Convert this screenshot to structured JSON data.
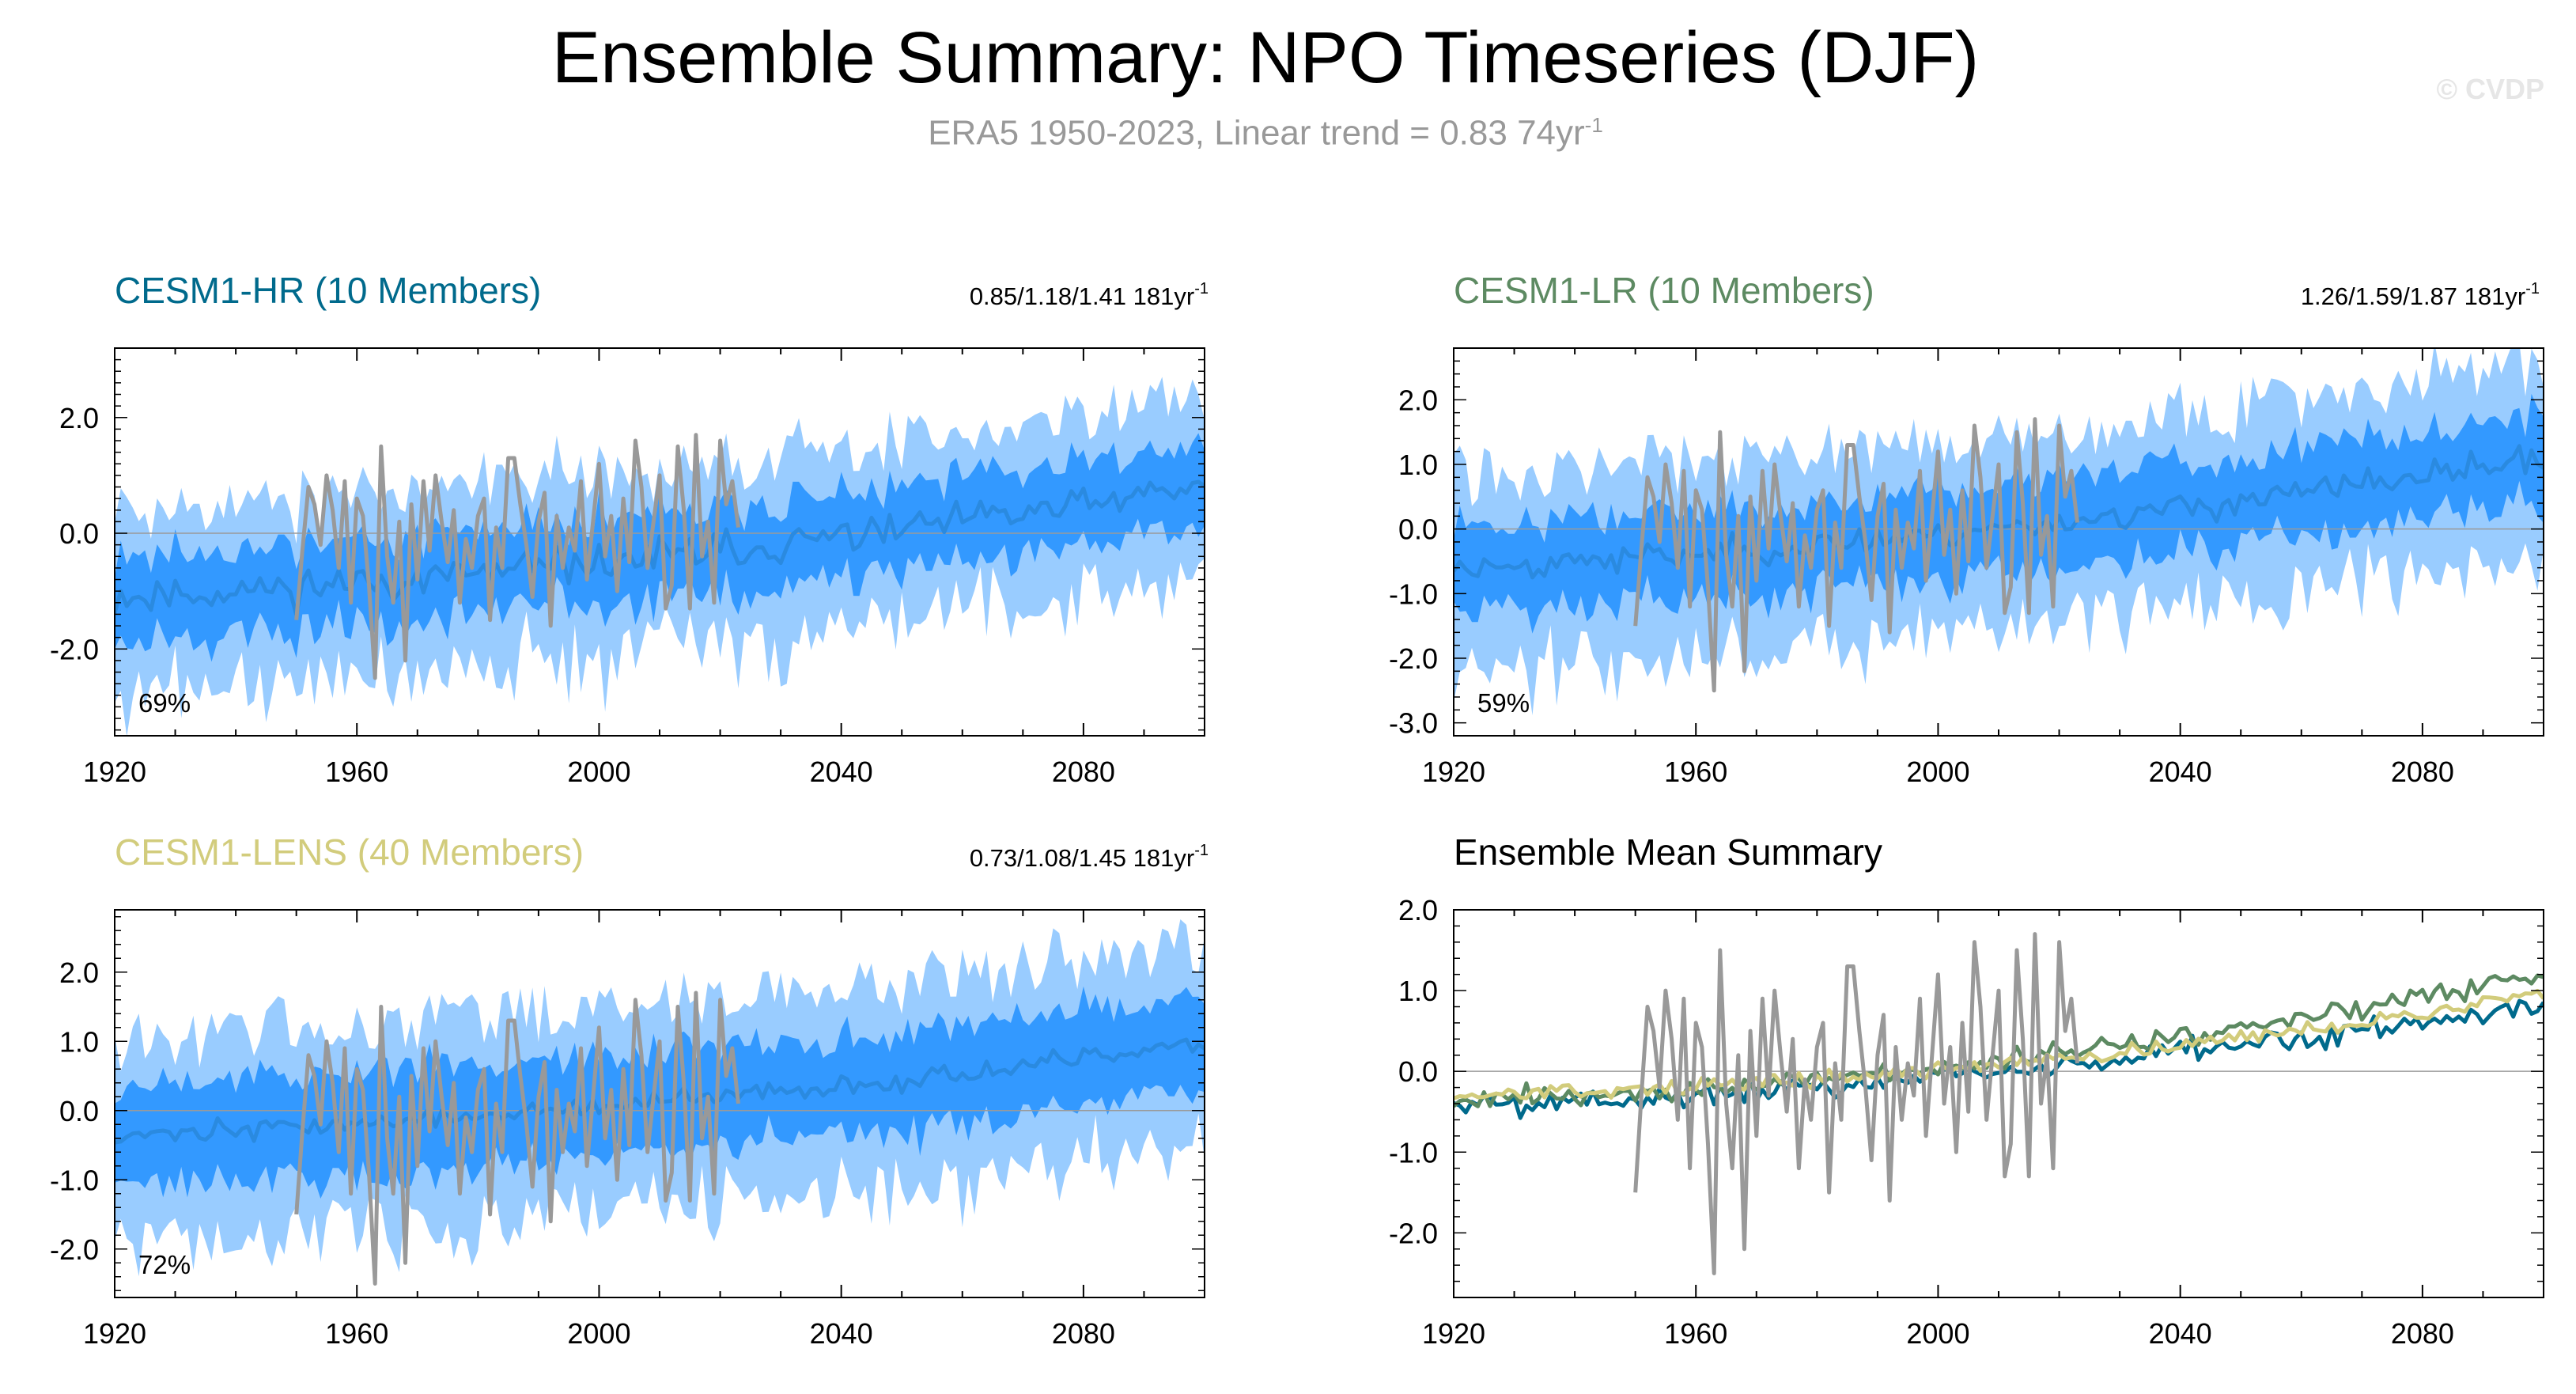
{
  "header": {
    "title": "Ensemble Summary: NPO Timeseries (DJF)",
    "subtitle_main": "ERA5 1950-2023, Linear trend = 0.83 74yr",
    "subtitle_exp": "-1",
    "watermark": "© CVDP"
  },
  "colors": {
    "obs": "#999999",
    "band_outer": "#99ccff",
    "band_inner": "#3399ff",
    "ens_mean_line": "#2a8ae0",
    "hr": "#006a8c",
    "lr": "#5d8a62",
    "lens": "#d2cc7c"
  },
  "chart_data": [
    {
      "type": "line",
      "id": "hr",
      "title": "CESM1-HR (10 Members)",
      "title_color": "#006a8c",
      "stat": "0.85/1.18/1.41 181yr",
      "stat_exp": "-1",
      "percent": "69%",
      "xlim": [
        1920,
        2100
      ],
      "ylim": [
        -3.5,
        3.2
      ],
      "xticks": [
        1920,
        1960,
        2000,
        2040,
        2080
      ],
      "xtick_labels": [
        "1920",
        "1960",
        "2000",
        "2040",
        "2080"
      ],
      "yticks": [
        2.0,
        0.0,
        -2.0
      ],
      "ytick_labels": [
        "2.0",
        "0.0",
        "-2.0"
      ],
      "ens_start": -1.1,
      "ens_end": 0.8,
      "ens_shape": 0.0019,
      "ens_noise": 0.45,
      "inner_half_width": 0.75,
      "outer_half_width": 1.45,
      "seed": 11
    },
    {
      "type": "line",
      "id": "lr",
      "title": "CESM1-LR (10 Members)",
      "title_color": "#5d8a62",
      "stat": "1.26/1.59/1.87 181yr",
      "stat_exp": "-1",
      "percent": "59%",
      "xlim": [
        1920,
        2100
      ],
      "ylim": [
        -3.2,
        2.8
      ],
      "xticks": [
        1920,
        1960,
        2000,
        2040,
        2080
      ],
      "xtick_labels": [
        "1920",
        "1960",
        "2000",
        "2040",
        "2080"
      ],
      "yticks": [
        2.0,
        1.0,
        0.0,
        -1.0,
        -2.0,
        -3.0
      ],
      "ytick_labels": [
        "2.0",
        "1.0",
        "0.0",
        "-1.0",
        "-2.0",
        "-3.0"
      ],
      "ens_start": -0.6,
      "ens_end": 1.1,
      "ens_shape": 0.0017,
      "ens_noise": 0.3,
      "inner_half_width": 0.7,
      "outer_half_width": 1.35,
      "seed": 23
    },
    {
      "type": "line",
      "id": "lens",
      "title": "CESM1-LENS (40 Members)",
      "title_color": "#d2cc7c",
      "stat": "0.73/1.08/1.45 181yr",
      "stat_exp": "-1",
      "percent": "72%",
      "xlim": [
        1920,
        2100
      ],
      "ylim": [
        -2.7,
        2.9
      ],
      "xticks": [
        1920,
        1960,
        2000,
        2040,
        2080
      ],
      "xtick_labels": [
        "1920",
        "1960",
        "2000",
        "2040",
        "2080"
      ],
      "yticks": [
        2.0,
        1.0,
        0.0,
        -1.0,
        -2.0
      ],
      "ytick_labels": [
        "2.0",
        "1.0",
        "0.0",
        "-1.0",
        "-2.0"
      ],
      "ens_start": -0.35,
      "ens_end": 0.95,
      "ens_shape": 0.0017,
      "ens_noise": 0.2,
      "inner_half_width": 0.75,
      "outer_half_width": 1.35,
      "seed": 37
    },
    {
      "type": "line",
      "id": "summary",
      "title": "Ensemble Mean Summary",
      "title_color": "#000000",
      "xlim": [
        1920,
        2100
      ],
      "ylim": [
        -2.8,
        2.0
      ],
      "xticks": [
        1920,
        1960,
        2000,
        2040,
        2080
      ],
      "xtick_labels": [
        "1920",
        "1960",
        "2000",
        "2040",
        "2080"
      ],
      "yticks": [
        2.0,
        1.0,
        0.0,
        -1.0,
        -2.0
      ],
      "ytick_labels": [
        "2.0",
        "1.0",
        "0.0",
        "-1.0",
        "-2.0"
      ],
      "series": [
        {
          "name": "CESM1-HR",
          "color": "#006a8c",
          "start": -0.4,
          "end": 0.85,
          "noise": 0.2,
          "seed": 5
        },
        {
          "name": "CESM1-LR",
          "color": "#5d8a62",
          "start": -0.35,
          "end": 1.2,
          "noise": 0.18,
          "seed": 9
        },
        {
          "name": "CESM1-LENS",
          "color": "#d2cc7c",
          "start": -0.3,
          "end": 0.95,
          "noise": 0.12,
          "seed": 13
        }
      ]
    }
  ],
  "observations": {
    "name": "ERA5",
    "years": [
      1950,
      1951,
      1952,
      1953,
      1954,
      1955,
      1956,
      1957,
      1958,
      1959,
      1960,
      1961,
      1962,
      1963,
      1964,
      1965,
      1966,
      1967,
      1968,
      1969,
      1970,
      1971,
      1972,
      1973,
      1974,
      1975,
      1976,
      1977,
      1978,
      1979,
      1980,
      1981,
      1982,
      1983,
      1984,
      1985,
      1986,
      1987,
      1988,
      1989,
      1990,
      1991,
      1992,
      1993,
      1994,
      1995,
      1996,
      1997,
      1998,
      1999,
      2000,
      2001,
      2002,
      2003,
      2004,
      2005,
      2006,
      2007,
      2008,
      2009,
      2010,
      2011,
      2012,
      2013,
      2014,
      2015,
      2016,
      2017,
      2018,
      2019,
      2020,
      2021,
      2022,
      2023
    ],
    "values": [
      -1.5,
      -0.3,
      0.8,
      0.5,
      -0.2,
      1.0,
      0.4,
      -0.6,
      0.9,
      -1.2,
      0.6,
      0.3,
      -0.9,
      -2.5,
      1.5,
      -0.4,
      -1.2,
      0.2,
      -2.2,
      0.5,
      -0.8,
      0.9,
      -0.3,
      1.0,
      0.2,
      -0.5,
      0.4,
      -1.2,
      -0.1,
      -0.6,
      0.3,
      0.6,
      -1.5,
      0.1,
      -0.6,
      1.3,
      1.3,
      0.5,
      -0.2,
      -1.1,
      0.2,
      0.7,
      -1.6,
      0.3,
      -0.6,
      0.1,
      -0.3,
      0.9,
      -0.8,
      0.2,
      1.2,
      -0.4,
      0.3,
      -1.0,
      0.6,
      -0.5,
      1.6,
      0.8,
      -0.6,
      0.2,
      1.0,
      -1.3,
      -0.9,
      1.5,
      0.4,
      -1.3,
      1.7,
      -0.4,
      0.2,
      -1.2,
      1.6,
      0.5,
      0.9,
      0.1
    ]
  }
}
